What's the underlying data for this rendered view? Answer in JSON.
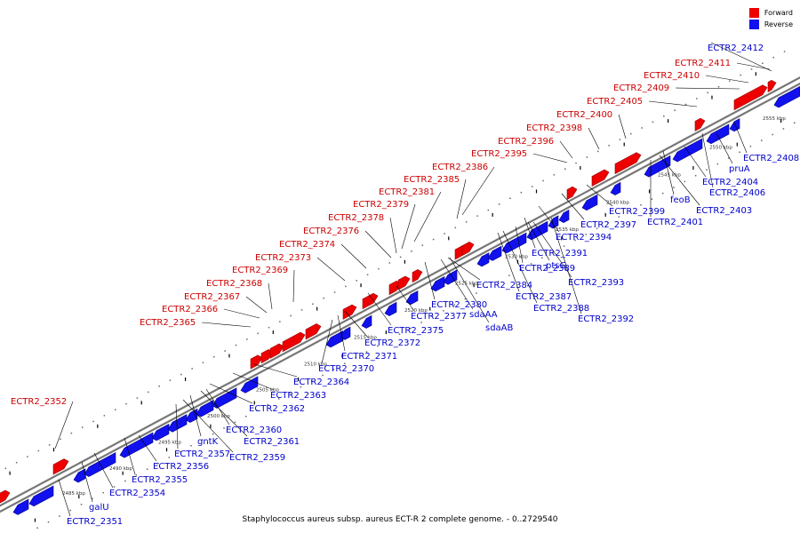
{
  "legend": {
    "items": [
      {
        "label": "Forward",
        "color": "#ee0000"
      },
      {
        "label": "Reverse",
        "color": "#1111ee"
      }
    ]
  },
  "caption": "Staphylococcus aureus subsp. aureus ECT-R 2 complete genome. - 0..2729540",
  "colors": {
    "forward": "#ee0000",
    "reverse": "#1111ee",
    "backbone": "#777777",
    "tick": "#000000"
  },
  "scale": {
    "kbp_marks": [
      "2485 kbp",
      "2490 kbp",
      "2495 kbp",
      "2500 kbp",
      "2505 kbp",
      "2510 kbp",
      "2515 kbp",
      "2520 kbp",
      "2525 kbp",
      "2530 kbp",
      "2535 kbp",
      "2540 kbp",
      "2545 kbp",
      "2550 kbp",
      "2555 kbp"
    ]
  },
  "forward_labels": [
    "ECTR2_2352",
    "ECTR2_2365",
    "ECTR2_2366",
    "ECTR2_2367",
    "ECTR2_2368",
    "ECTR2_2369",
    "ECTR2_2373",
    "ECTR2_2374",
    "ECTR2_2376",
    "ECTR2_2378",
    "ECTR2_2379",
    "ECTR2_2381",
    "ECTR2_2385",
    "ECTR2_2386",
    "ECTR2_2395",
    "ECTR2_2396",
    "ECTR2_2398",
    "ECTR2_2400",
    "ECTR2_2405",
    "ECTR2_2409",
    "ECTR2_2410",
    "ECTR2_2411"
  ],
  "reverse_labels": [
    "ECTR2_2412",
    "ECTR2_2408",
    "pruA",
    "ECTR2_2406",
    "ECTR2_2404",
    "feoB",
    "ECTR2_2403",
    "ECTR2_2401",
    "ECTR2_2399",
    "ECTR2_2397",
    "ECTR2_2394",
    "ECTR2_2391",
    "ptsG",
    "ECTR2_2389",
    "ECTR2_2393",
    "ECTR2_2387",
    "ECTR2_2388",
    "ECTR2_2392",
    "ECTR2_2384",
    "ECTR2_2380",
    "sdaAA",
    "sdaAB",
    "ECTR2_2377",
    "ECTR2_2375",
    "ECTR2_2372",
    "ECTR2_2371",
    "ECTR2_2370",
    "ECTR2_2364",
    "ECTR2_2363",
    "ECTR2_2362",
    "ECTR2_2360",
    "ECTR2_2361",
    "gntK",
    "ECTR2_2357",
    "ECTR2_2359",
    "ECTR2_2356",
    "ECTR2_2355",
    "ECTR2_2354",
    "galU",
    "ECTR2_2351"
  ]
}
